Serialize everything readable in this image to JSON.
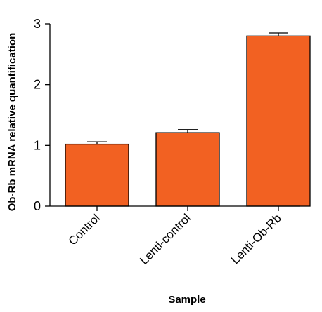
{
  "chart_data": {
    "type": "bar",
    "title": "",
    "xlabel": "Sample",
    "ylabel": "Ob-Rb mRNA relative quantification",
    "categories": [
      "Control",
      "Lenti-control",
      "Lenti-Ob-Rb"
    ],
    "values": [
      1.02,
      1.21,
      2.8
    ],
    "error": [
      0.04,
      0.05,
      0.05
    ],
    "ylim": [
      0,
      3
    ],
    "yticks": [
      0,
      1,
      2,
      3
    ],
    "grid": false,
    "bar_color": "#F26122",
    "bar_edge_color": "#000000"
  }
}
